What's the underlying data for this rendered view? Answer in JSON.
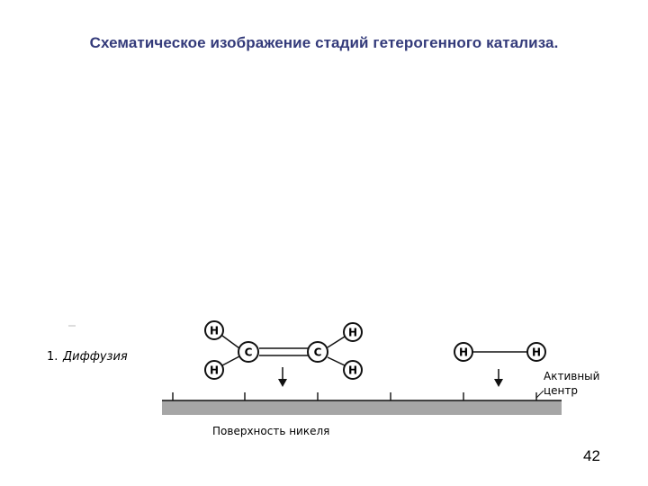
{
  "slide": {
    "title": "Схематическое изображение стадий гетерогенного  катализа.",
    "page_number": "42"
  },
  "diagram": {
    "step_number": "1.",
    "step_name": "Диффузия",
    "surface_label": "Поверхность никеля",
    "active_site_label_line1": "Активный",
    "active_site_label_line2": "центр",
    "atoms": {
      "hydrogen": "H",
      "carbon": "C"
    },
    "colors": {
      "title": "#333a7a",
      "surface": "#a6a6a6",
      "ink": "#111111"
    }
  }
}
